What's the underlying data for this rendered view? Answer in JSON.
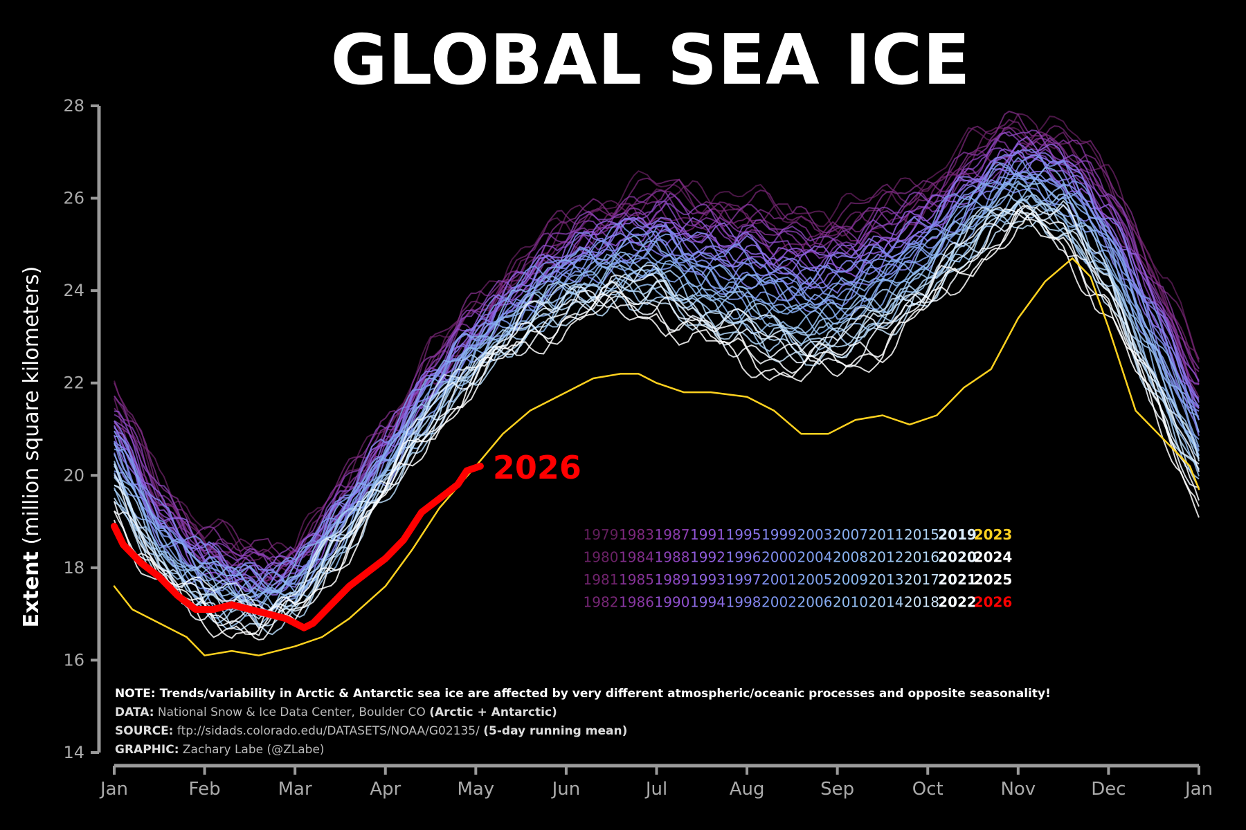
{
  "title": "GLOBAL SEA ICE",
  "colors": {
    "background": "#000000",
    "axis": "#9a9a9a",
    "tick_label": "#aaaaaa",
    "highlight_2026": "#ff0000",
    "year_2023": "#ffd21f"
  },
  "chart_data": {
    "type": "line",
    "ylabel_bold": "Extent",
    "ylabel_rest": "(million square kilometers)",
    "ylim": [
      14,
      28
    ],
    "yticks": [
      "14",
      "16",
      "18",
      "20",
      "22",
      "24",
      "26",
      "28"
    ],
    "xlim": [
      0,
      12
    ],
    "xticks": [
      "Jan",
      "Feb",
      "Mar",
      "Apr",
      "May",
      "Jun",
      "Jul",
      "Aug",
      "Sep",
      "Oct",
      "Nov",
      "Dec",
      "Jan"
    ],
    "grid": false,
    "legend": "bottom-right year grid, 4 rows × 12 columns",
    "climatology_early": [
      [
        0,
        21.8
      ],
      [
        0.5,
        19.8
      ],
      [
        1,
        18.7
      ],
      [
        1.6,
        18.2
      ],
      [
        2,
        18.4
      ],
      [
        2.5,
        19.6
      ],
      [
        3,
        21.0
      ],
      [
        3.5,
        22.5
      ],
      [
        4,
        23.6
      ],
      [
        4.5,
        24.6
      ],
      [
        5,
        25.4
      ],
      [
        5.5,
        25.9
      ],
      [
        6,
        26.2
      ],
      [
        6.5,
        26.0
      ],
      [
        7,
        25.9
      ],
      [
        7.5,
        25.6
      ],
      [
        8,
        25.6
      ],
      [
        8.5,
        25.9
      ],
      [
        9,
        26.3
      ],
      [
        9.5,
        27.1
      ],
      [
        10,
        27.6
      ],
      [
        10.5,
        27.4
      ],
      [
        11,
        26.4
      ],
      [
        11.5,
        24.6
      ],
      [
        12,
        22.4
      ]
    ],
    "climatology_late": [
      [
        0,
        19.4
      ],
      [
        0.5,
        17.8
      ],
      [
        1,
        17.1
      ],
      [
        1.6,
        16.8
      ],
      [
        2,
        17.1
      ],
      [
        2.5,
        18.4
      ],
      [
        3,
        19.7
      ],
      [
        3.5,
        21.1
      ],
      [
        4,
        22.2
      ],
      [
        4.5,
        23.0
      ],
      [
        5,
        23.5
      ],
      [
        5.5,
        23.8
      ],
      [
        6,
        23.7
      ],
      [
        6.5,
        23.1
      ],
      [
        7,
        22.8
      ],
      [
        7.5,
        22.4
      ],
      [
        8,
        22.5
      ],
      [
        8.5,
        23.0
      ],
      [
        9,
        23.8
      ],
      [
        9.5,
        24.8
      ],
      [
        10,
        25.6
      ],
      [
        10.5,
        25.2
      ],
      [
        11,
        23.8
      ],
      [
        11.5,
        21.6
      ],
      [
        12,
        19.6
      ]
    ],
    "series": [
      {
        "name": "2023",
        "values": [
          [
            0,
            17.6
          ],
          [
            0.2,
            17.1
          ],
          [
            0.5,
            16.8
          ],
          [
            0.8,
            16.5
          ],
          [
            1,
            16.1
          ],
          [
            1.3,
            16.2
          ],
          [
            1.6,
            16.1
          ],
          [
            2,
            16.3
          ],
          [
            2.3,
            16.5
          ],
          [
            2.6,
            16.9
          ],
          [
            3,
            17.6
          ],
          [
            3.3,
            18.4
          ],
          [
            3.6,
            19.3
          ],
          [
            4,
            20.2
          ],
          [
            4.3,
            20.9
          ],
          [
            4.6,
            21.4
          ],
          [
            5,
            21.8
          ],
          [
            5.3,
            22.1
          ],
          [
            5.6,
            22.2
          ],
          [
            5.8,
            22.2
          ],
          [
            6,
            22.0
          ],
          [
            6.3,
            21.8
          ],
          [
            6.6,
            21.8
          ],
          [
            7,
            21.7
          ],
          [
            7.3,
            21.4
          ],
          [
            7.6,
            20.9
          ],
          [
            7.9,
            20.9
          ],
          [
            8.2,
            21.2
          ],
          [
            8.5,
            21.3
          ],
          [
            8.8,
            21.1
          ],
          [
            9.1,
            21.3
          ],
          [
            9.4,
            21.9
          ],
          [
            9.7,
            22.3
          ],
          [
            10,
            23.4
          ],
          [
            10.3,
            24.2
          ],
          [
            10.6,
            24.7
          ],
          [
            10.8,
            24.3
          ],
          [
            11,
            23.2
          ],
          [
            11.3,
            21.4
          ],
          [
            11.6,
            20.8
          ],
          [
            11.9,
            20.2
          ],
          [
            12,
            19.7
          ]
        ]
      },
      {
        "name": "2026",
        "values": [
          [
            0,
            18.9
          ],
          [
            0.1,
            18.5
          ],
          [
            0.3,
            18.1
          ],
          [
            0.5,
            17.8
          ],
          [
            0.7,
            17.4
          ],
          [
            0.9,
            17.1
          ],
          [
            1.1,
            17.1
          ],
          [
            1.3,
            17.2
          ],
          [
            1.5,
            17.1
          ],
          [
            1.7,
            17.0
          ],
          [
            1.9,
            16.9
          ],
          [
            2.0,
            16.8
          ],
          [
            2.1,
            16.7
          ],
          [
            2.2,
            16.8
          ],
          [
            2.4,
            17.2
          ],
          [
            2.6,
            17.6
          ],
          [
            2.8,
            17.9
          ],
          [
            3.0,
            18.2
          ],
          [
            3.2,
            18.6
          ],
          [
            3.4,
            19.2
          ],
          [
            3.6,
            19.5
          ],
          [
            3.8,
            19.8
          ],
          [
            3.9,
            20.1
          ],
          [
            4.05,
            20.2
          ]
        ]
      }
    ],
    "series_label": "2026",
    "years": [
      "1979",
      "1980",
      "1981",
      "1982",
      "1983",
      "1984",
      "1985",
      "1986",
      "1987",
      "1988",
      "1989",
      "1990",
      "1991",
      "1992",
      "1993",
      "1994",
      "1995",
      "1996",
      "1997",
      "1998",
      "1999",
      "2000",
      "2001",
      "2002",
      "2003",
      "2004",
      "2005",
      "2006",
      "2007",
      "2008",
      "2009",
      "2010",
      "2011",
      "2012",
      "2013",
      "2014",
      "2015",
      "2016",
      "2017",
      "2018",
      "2019",
      "2020",
      "2021",
      "2022",
      "2023",
      "2024",
      "2025",
      "2026"
    ]
  },
  "notes": {
    "note": "NOTE: Trends/variability in Arctic & Antarctic sea ice are affected by very different atmospheric/oceanic processes and opposite seasonality!",
    "data_key": "DATA:",
    "data_val": "National Snow & Ice Data Center, Boulder CO",
    "data_extra": "(Arctic + Antarctic)",
    "source_key": "SOURCE:",
    "source_val": "ftp://sidads.colorado.edu/DATASETS/NOAA/G02135/",
    "source_extra": "(5-day running mean)",
    "graphic_key": "GRAPHIC:",
    "graphic_val": "Zachary Labe (@ZLabe)"
  }
}
